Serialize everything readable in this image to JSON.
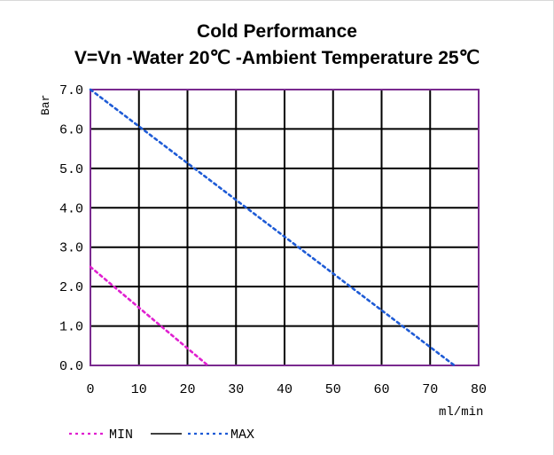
{
  "chart_data": {
    "type": "line",
    "title": "Cold Performance",
    "subtitle": "V=Vn -Water 20℃ -Ambient Temperature 25℃",
    "xlabel": "ml/min",
    "ylabel": "Bar",
    "xlim": [
      0,
      80
    ],
    "ylim": [
      0,
      7
    ],
    "x_ticks": [
      "0",
      "10",
      "20",
      "30",
      "40",
      "50",
      "60",
      "70",
      "80"
    ],
    "y_ticks": [
      "0.0",
      "1.0",
      "2.0",
      "3.0",
      "4.0",
      "5.0",
      "6.0",
      "7.0"
    ],
    "grid": true,
    "legend": {
      "placement": "bottom-left",
      "middle_label": ""
    },
    "series": [
      {
        "name": "MIN",
        "color": "#e020d0",
        "style": "dotted",
        "x": [
          0,
          24.2
        ],
        "y": [
          2.5,
          0.0
        ]
      },
      {
        "name": "MAX",
        "color": "#1e5bd6",
        "style": "dotted",
        "x": [
          0,
          75.0
        ],
        "y": [
          7.0,
          0.0
        ]
      }
    ]
  },
  "colors": {
    "grid": "#000000",
    "plot_border": "#7a2a8f"
  }
}
